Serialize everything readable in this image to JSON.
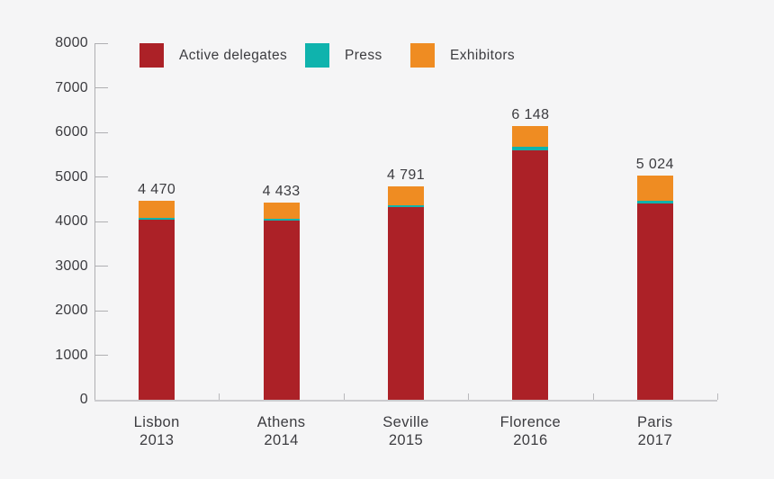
{
  "chart_data": {
    "type": "bar",
    "stacked": true,
    "title": "",
    "xlabel": "",
    "ylabel": "",
    "categories": [
      {
        "city": "Lisbon",
        "year": "2013"
      },
      {
        "city": "Athens",
        "year": "2014"
      },
      {
        "city": "Seville",
        "year": "2015"
      },
      {
        "city": "Florence",
        "year": "2016"
      },
      {
        "city": "Paris",
        "year": "2017"
      }
    ],
    "series": [
      {
        "name": "Active delegates",
        "color": "#AC2127",
        "values": [
          4050,
          4030,
          4317,
          5595,
          4400
        ]
      },
      {
        "name": "Press",
        "color": "#0FB3AD",
        "values": [
          30,
          25,
          50,
          80,
          70
        ]
      },
      {
        "name": "Exhibitors",
        "color": "#EF8C22",
        "values": [
          390,
          378,
          424,
          473,
          554
        ]
      }
    ],
    "totals": [
      4470,
      4433,
      4791,
      6148,
      5024
    ],
    "total_labels": [
      "4 470",
      "4 433",
      "4 791",
      "6 148",
      "5 024"
    ],
    "ylim": [
      0,
      8000
    ],
    "ytick_step": 1000,
    "ytick_labels": [
      "8000",
      "7000",
      "6000",
      "5000",
      "4000",
      "3000",
      "2000",
      "1000",
      "0"
    ],
    "grid": false,
    "legend_position": "top-inside"
  },
  "colors": {
    "background": "#F5F5F6",
    "axis": "#AFAFB2",
    "x_axis_line": "#CBCBCE",
    "text": "#3C3C40"
  }
}
